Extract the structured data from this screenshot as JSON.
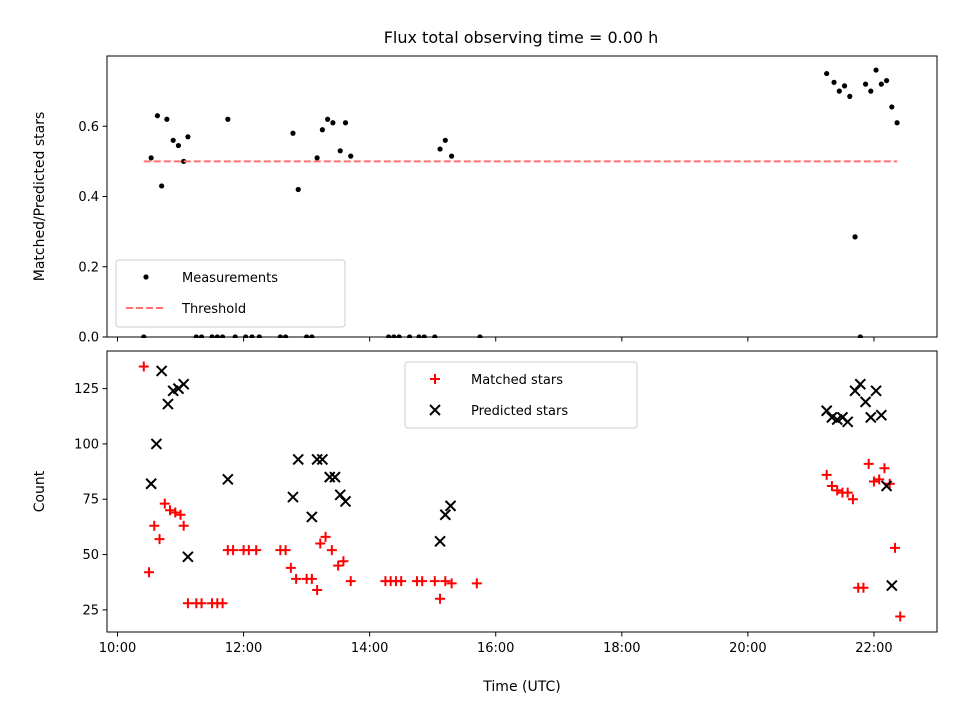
{
  "title": "Flux total observing time = 0.00 h",
  "chart_data": [
    {
      "type": "scatter",
      "panel": "top",
      "title": "Flux total observing time = 0.00 h",
      "xlabel": "",
      "ylabel": "Matched/Predicted stars",
      "xlim": [
        "09:50",
        "23:00"
      ],
      "ylim": [
        0,
        0.8
      ],
      "x_ticks": [
        "10:00",
        "12:00",
        "14:00",
        "16:00",
        "18:00",
        "20:00",
        "22:00"
      ],
      "y_ticks": [
        "0.0",
        "0.2",
        "0.4",
        "0.6"
      ],
      "legend_position": "lower-left",
      "series": [
        {
          "name": "Measurements",
          "marker": "dot",
          "color": "#000000",
          "points": [
            [
              "10:25",
              0.0
            ],
            [
              "10:32",
              0.51
            ],
            [
              "10:38",
              0.63
            ],
            [
              "10:42",
              0.43
            ],
            [
              "10:47",
              0.62
            ],
            [
              "10:53",
              0.56
            ],
            [
              "10:58",
              0.545
            ],
            [
              "11:03",
              0.5
            ],
            [
              "11:07",
              0.57
            ],
            [
              "11:15",
              0.0
            ],
            [
              "11:20",
              0.0
            ],
            [
              "11:30",
              0.0
            ],
            [
              "11:35",
              0.0
            ],
            [
              "11:40",
              0.0
            ],
            [
              "11:45",
              0.62
            ],
            [
              "11:52",
              0.0
            ],
            [
              "12:02",
              0.0
            ],
            [
              "12:08",
              0.0
            ],
            [
              "12:15",
              0.0
            ],
            [
              "12:35",
              0.0
            ],
            [
              "12:40",
              0.0
            ],
            [
              "12:47",
              0.58
            ],
            [
              "12:52",
              0.42
            ],
            [
              "13:00",
              0.0
            ],
            [
              "13:05",
              0.0
            ],
            [
              "13:10",
              0.51
            ],
            [
              "13:15",
              0.59
            ],
            [
              "13:20",
              0.62
            ],
            [
              "13:25",
              0.61
            ],
            [
              "13:32",
              0.53
            ],
            [
              "13:37",
              0.61
            ],
            [
              "13:42",
              0.515
            ],
            [
              "14:18",
              0.0
            ],
            [
              "14:23",
              0.0
            ],
            [
              "14:28",
              0.0
            ],
            [
              "14:38",
              0.0
            ],
            [
              "14:47",
              0.0
            ],
            [
              "14:52",
              0.0
            ],
            [
              "15:02",
              0.0
            ],
            [
              "15:07",
              0.535
            ],
            [
              "15:12",
              0.56
            ],
            [
              "15:18",
              0.515
            ],
            [
              "15:45",
              0.0
            ],
            [
              "21:15",
              0.75
            ],
            [
              "21:22",
              0.725
            ],
            [
              "21:27",
              0.7
            ],
            [
              "21:32",
              0.715
            ],
            [
              "21:37",
              0.685
            ],
            [
              "21:42",
              0.285
            ],
            [
              "21:47",
              0.0
            ],
            [
              "21:52",
              0.72
            ],
            [
              "21:57",
              0.7
            ],
            [
              "22:02",
              0.76
            ],
            [
              "22:07",
              0.72
            ],
            [
              "22:12",
              0.73
            ],
            [
              "22:17",
              0.655
            ],
            [
              "22:22",
              0.61
            ]
          ]
        },
        {
          "name": "Threshold",
          "marker": "dashed-line",
          "color": "#ff7070",
          "points": [
            [
              "10:25",
              0.5
            ],
            [
              "22:22",
              0.5
            ]
          ]
        }
      ]
    },
    {
      "type": "scatter",
      "panel": "bottom",
      "xlabel": "Time (UTC)",
      "ylabel": "Count",
      "xlim": [
        "09:50",
        "23:00"
      ],
      "ylim": [
        15,
        142
      ],
      "x_ticks": [
        "10:00",
        "12:00",
        "14:00",
        "16:00",
        "18:00",
        "20:00",
        "22:00"
      ],
      "y_ticks": [
        "25",
        "50",
        "75",
        "100",
        "125"
      ],
      "legend_position": "upper-center",
      "series": [
        {
          "name": "Matched stars",
          "marker": "plus",
          "color": "#ff0000",
          "points": [
            [
              "10:25",
              135
            ],
            [
              "10:30",
              42
            ],
            [
              "10:35",
              63
            ],
            [
              "10:40",
              57
            ],
            [
              "10:45",
              73
            ],
            [
              "10:50",
              70
            ],
            [
              "10:55",
              69
            ],
            [
              "11:00",
              68
            ],
            [
              "11:03",
              63
            ],
            [
              "11:07",
              28
            ],
            [
              "11:15",
              28
            ],
            [
              "11:20",
              28
            ],
            [
              "11:30",
              28
            ],
            [
              "11:35",
              28
            ],
            [
              "11:40",
              28
            ],
            [
              "11:45",
              52
            ],
            [
              "11:50",
              52
            ],
            [
              "12:00",
              52
            ],
            [
              "12:05",
              52
            ],
            [
              "12:12",
              52
            ],
            [
              "12:35",
              52
            ],
            [
              "12:40",
              52
            ],
            [
              "12:45",
              44
            ],
            [
              "12:50",
              39
            ],
            [
              "13:00",
              39
            ],
            [
              "13:05",
              39
            ],
            [
              "13:10",
              34
            ],
            [
              "13:13",
              55
            ],
            [
              "13:18",
              58
            ],
            [
              "13:24",
              52
            ],
            [
              "13:30",
              45
            ],
            [
              "13:35",
              47
            ],
            [
              "13:42",
              38
            ],
            [
              "14:15",
              38
            ],
            [
              "14:20",
              38
            ],
            [
              "14:25",
              38
            ],
            [
              "14:30",
              38
            ],
            [
              "14:45",
              38
            ],
            [
              "14:50",
              38
            ],
            [
              "15:02",
              38
            ],
            [
              "15:07",
              30
            ],
            [
              "15:12",
              38
            ],
            [
              "15:18",
              37
            ],
            [
              "15:42",
              37
            ],
            [
              "21:15",
              86
            ],
            [
              "21:20",
              81
            ],
            [
              "21:25",
              79
            ],
            [
              "21:30",
              78
            ],
            [
              "21:35",
              78
            ],
            [
              "21:40",
              75
            ],
            [
              "21:45",
              35
            ],
            [
              "21:50",
              35
            ],
            [
              "21:55",
              91
            ],
            [
              "22:00",
              83
            ],
            [
              "22:05",
              84
            ],
            [
              "22:10",
              89
            ],
            [
              "22:15",
              82
            ],
            [
              "22:20",
              53
            ],
            [
              "22:25",
              22
            ]
          ]
        },
        {
          "name": "Predicted stars",
          "marker": "x",
          "color": "#000000",
          "points": [
            [
              "10:32",
              82
            ],
            [
              "10:37",
              100
            ],
            [
              "10:42",
              133
            ],
            [
              "10:48",
              118
            ],
            [
              "10:53",
              124
            ],
            [
              "10:58",
              125
            ],
            [
              "11:03",
              127
            ],
            [
              "11:07",
              49
            ],
            [
              "11:45",
              84
            ],
            [
              "12:47",
              76
            ],
            [
              "12:52",
              93
            ],
            [
              "13:05",
              67
            ],
            [
              "13:10",
              93
            ],
            [
              "13:15",
              93
            ],
            [
              "13:22",
              85
            ],
            [
              "13:27",
              85
            ],
            [
              "13:32",
              77
            ],
            [
              "13:37",
              74
            ],
            [
              "15:07",
              56
            ],
            [
              "15:12",
              68
            ],
            [
              "15:17",
              72
            ],
            [
              "21:15",
              115
            ],
            [
              "21:20",
              112
            ],
            [
              "21:25",
              111
            ],
            [
              "21:30",
              112
            ],
            [
              "21:35",
              110
            ],
            [
              "21:42",
              124
            ],
            [
              "21:47",
              127
            ],
            [
              "21:52",
              119
            ],
            [
              "21:57",
              112
            ],
            [
              "22:02",
              124
            ],
            [
              "22:07",
              113
            ],
            [
              "22:12",
              81
            ],
            [
              "22:17",
              36
            ]
          ]
        }
      ]
    }
  ]
}
